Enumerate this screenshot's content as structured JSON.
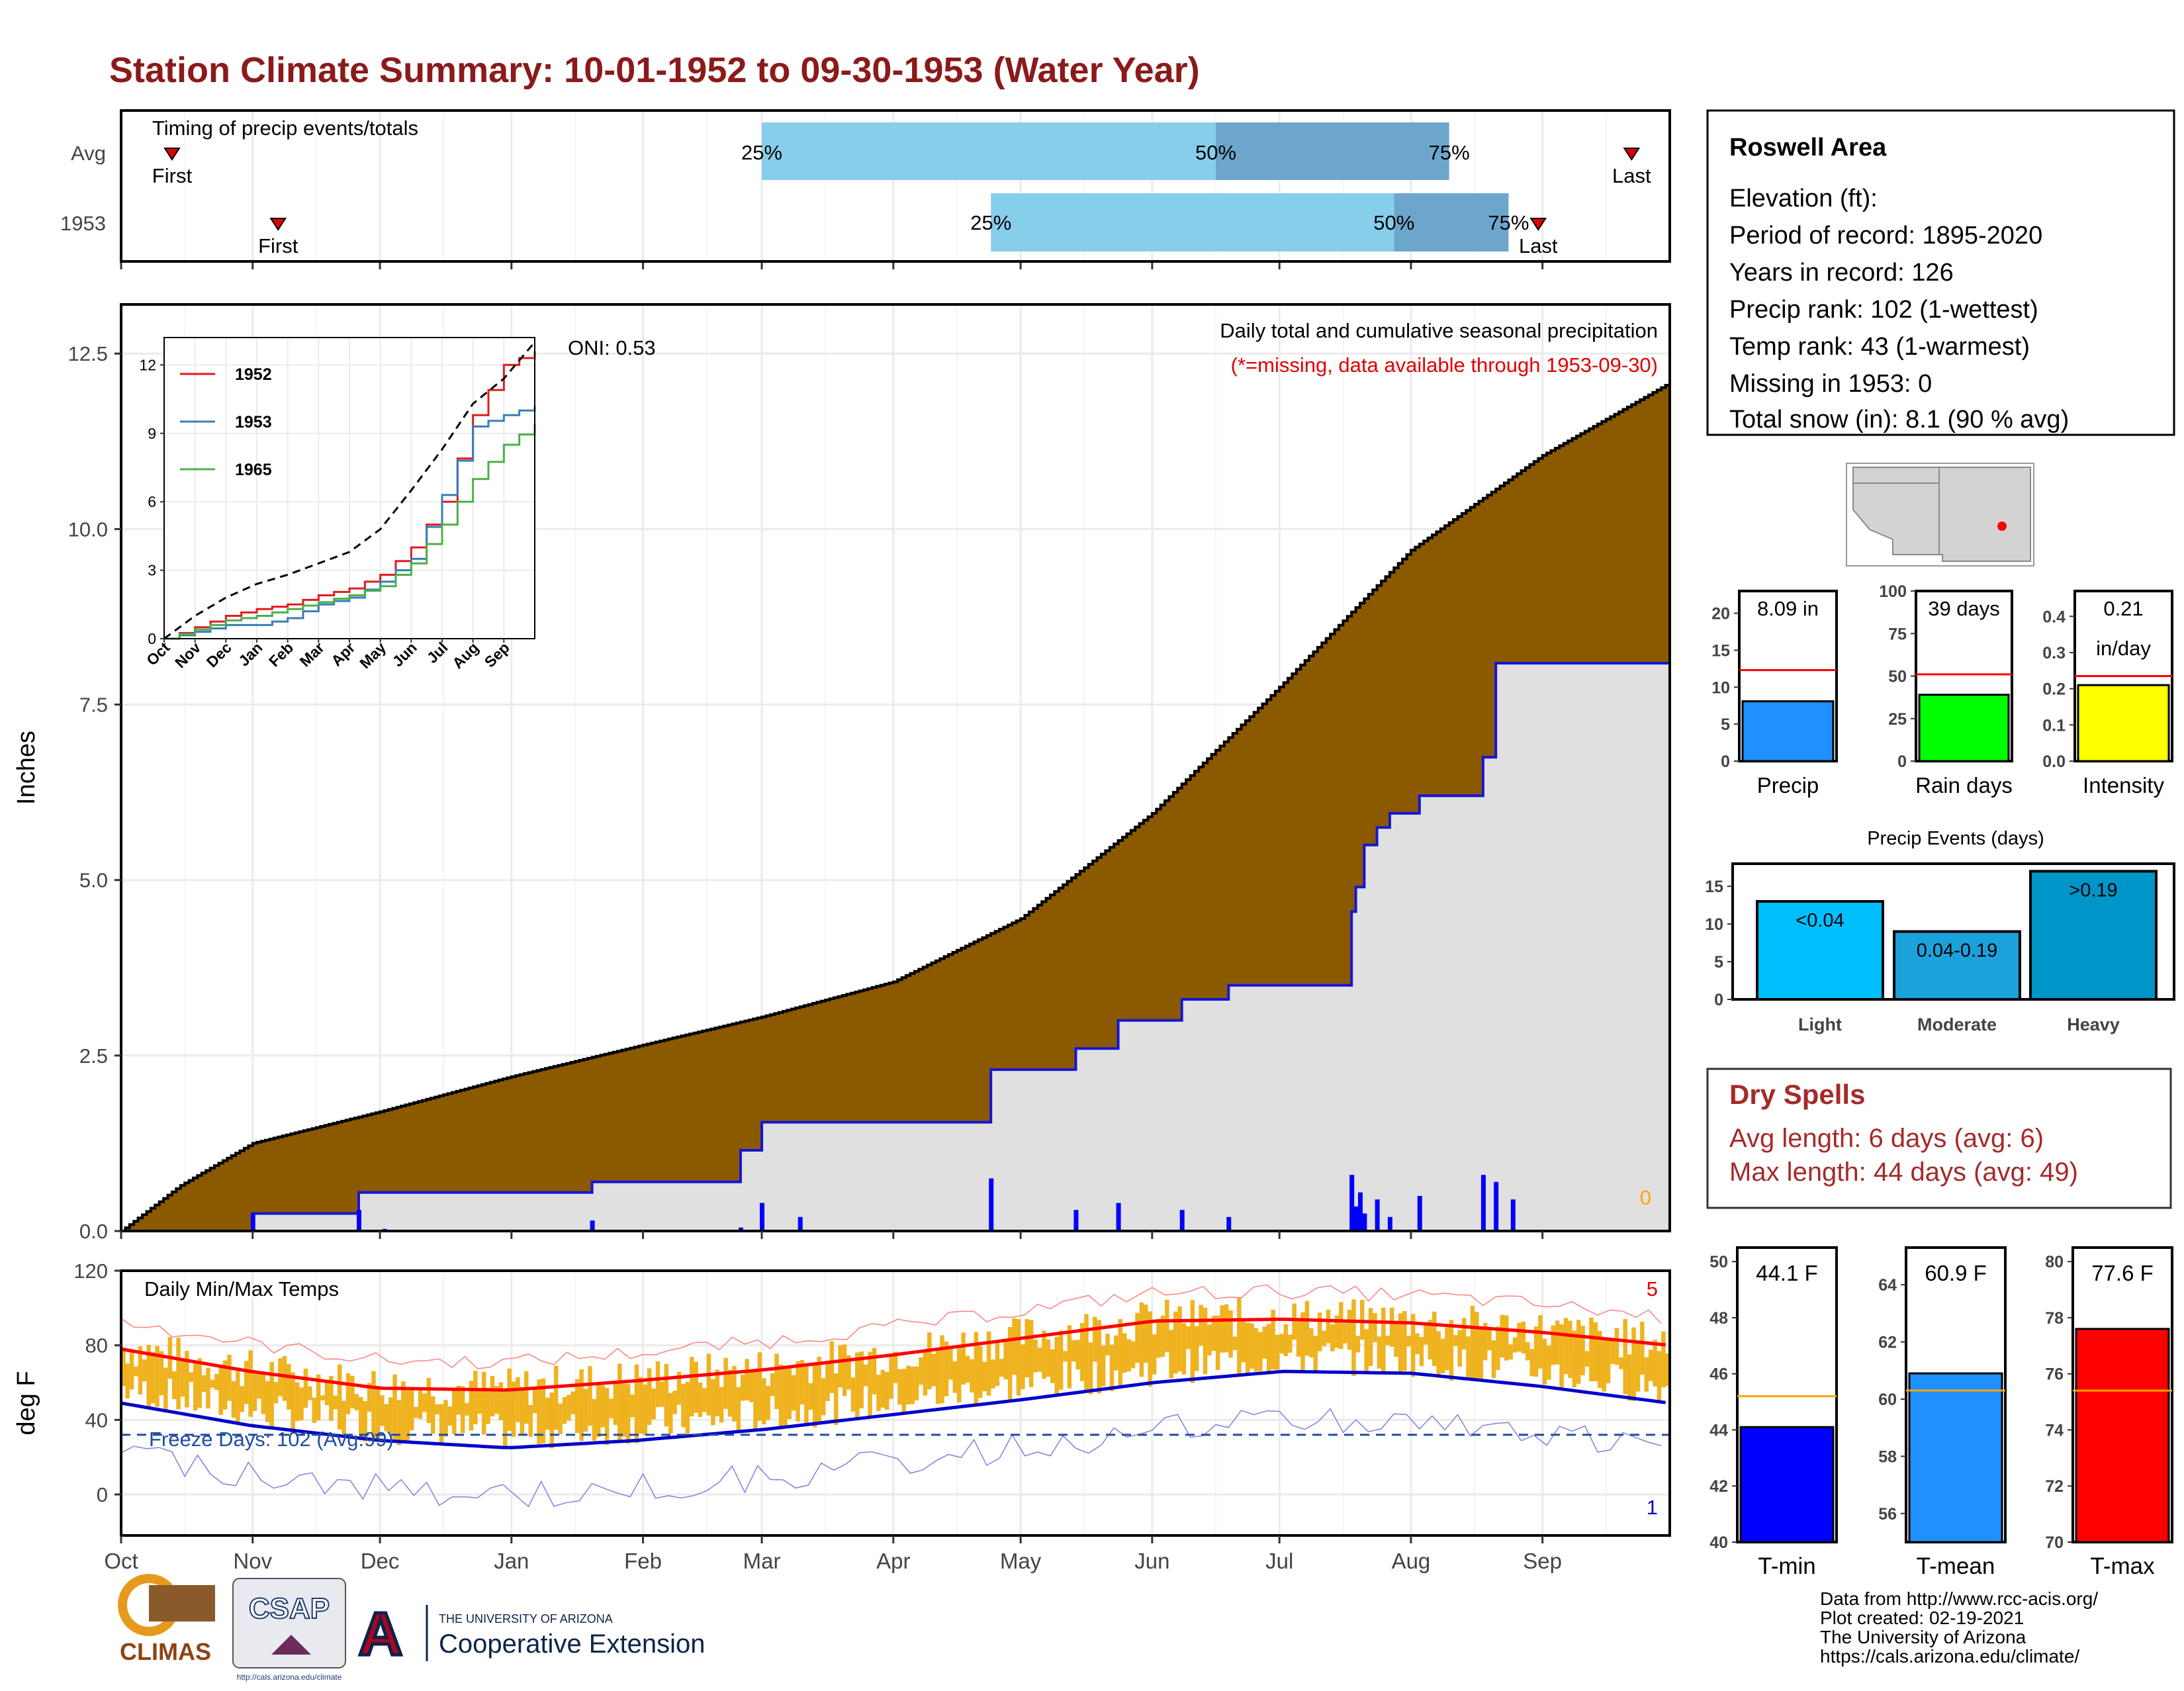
{
  "title": "Station Climate Summary: 10-01-1952 to 09-30-1953 (Water Year)",
  "colors": {
    "title": "#8B1A1A",
    "precip_fill": "#8B5A00",
    "gray_fill": "#E0E0E0",
    "current_line": "#1515D6",
    "iqr_light": "#87CEEB",
    "iqr_dark": "#6CA6CD",
    "temp_bar": "#EFB320",
    "tmax_line": "#FF0000",
    "tmin_line": "#0000CD",
    "dry_spell": "#A52A2A"
  },
  "month_labels": [
    "Oct",
    "Nov",
    "Dec",
    "Jan",
    "Feb",
    "Mar",
    "Apr",
    "May",
    "Jun",
    "Jul",
    "Aug",
    "Sep"
  ],
  "timing": {
    "title": "Timing of precip events/totals",
    "rows": [
      "Avg",
      "1953"
    ],
    "first_label": "First",
    "last_label": "Last",
    "pct_labels": [
      "25%",
      "50%",
      "75%"
    ],
    "avg": {
      "first": "1952-10-13",
      "p25": "1953-03-01",
      "p50": "1953-06-16",
      "p75": "1953-08-10",
      "last": "1953-09-22"
    },
    "y1953": {
      "first": "1952-11-07",
      "p25": "1953-04-24",
      "p50": "1953-07-28",
      "p75": "1953-08-24",
      "last": "1953-08-31"
    }
  },
  "precip": {
    "subtitle": "Daily total and cumulative seasonal precipitation",
    "missing_note": "(*=missing, data available through 1953-09-30)",
    "oni": "ONI: 0.53",
    "ylabel": "Inches",
    "yticks": [
      "0.0",
      "2.5",
      "5.0",
      "7.5",
      "10.0",
      "12.5"
    ],
    "missing_count": "0",
    "chart_data": {
      "type": "area",
      "ylim": [
        0,
        13.2
      ],
      "avg_cumulative": {
        "dates": [
          "1952-10-01",
          "1952-10-15",
          "1952-11-01",
          "1952-12-01",
          "1953-01-01",
          "1953-02-01",
          "1953-03-01",
          "1953-04-01",
          "1953-05-01",
          "1953-06-01",
          "1953-07-01",
          "1953-08-01",
          "1953-09-01",
          "1953-09-30"
        ],
        "values": [
          0.0,
          0.65,
          1.25,
          1.7,
          2.2,
          2.65,
          3.05,
          3.55,
          4.45,
          5.95,
          7.75,
          9.7,
          11.05,
          12.05
        ]
      },
      "series_1953_cumulative": {
        "dates": [
          "1952-10-01",
          "1952-11-01",
          "1952-11-26",
          "1953-01-20",
          "1953-02-24",
          "1953-03-01",
          "1953-04-24",
          "1953-05-14",
          "1953-05-24",
          "1953-06-08",
          "1953-06-19",
          "1953-07-18",
          "1953-07-19",
          "1953-07-21",
          "1953-07-24",
          "1953-07-27",
          "1953-08-03",
          "1953-08-18",
          "1953-08-21",
          "1953-09-30"
        ],
        "values": [
          0.0,
          0.25,
          0.55,
          0.7,
          1.15,
          1.55,
          2.3,
          2.6,
          3.0,
          3.3,
          3.5,
          4.55,
          4.9,
          5.5,
          5.75,
          5.95,
          6.2,
          6.75,
          8.09,
          8.09
        ]
      },
      "daily_1953": {
        "dates": [
          "1952-11-01",
          "1952-11-26",
          "1952-12-02",
          "1953-01-20",
          "1953-02-24",
          "1953-03-01",
          "1953-03-10",
          "1953-04-24",
          "1953-05-14",
          "1953-05-24",
          "1953-06-08",
          "1953-06-19",
          "1953-07-18",
          "1953-07-19",
          "1953-07-20",
          "1953-07-21",
          "1953-07-24",
          "1953-07-27",
          "1953-08-03",
          "1953-08-18",
          "1953-08-21",
          "1953-08-25"
        ],
        "values": [
          0.25,
          0.3,
          0.03,
          0.15,
          0.05,
          0.4,
          0.2,
          0.75,
          0.3,
          0.4,
          0.3,
          0.2,
          0.8,
          0.35,
          0.55,
          0.25,
          0.45,
          0.2,
          0.5,
          0.8,
          0.7,
          0.45
        ]
      },
      "inset": {
        "yticks": [
          "0",
          "3",
          "6",
          "9",
          "12"
        ],
        "xticks": [
          "Oct",
          "Nov",
          "Dec",
          "Jan",
          "Feb",
          "Mar",
          "Apr",
          "May",
          "Jun",
          "Jul",
          "Aug",
          "Sep"
        ],
        "series": [
          {
            "name": "1952",
            "color": "#E41A1C",
            "values": [
              0,
              0.5,
              1.0,
              1.3,
              1.5,
              1.9,
              2.2,
              2.8,
              4.0,
              6.0,
              9.8,
              12.0,
              14.2
            ]
          },
          {
            "name": "1953",
            "color": "#377EB8",
            "values": [
              0,
              0.3,
              0.6,
              0.6,
              0.9,
              1.5,
              1.8,
              2.5,
              3.5,
              6.3,
              9.3,
              9.8,
              10.2
            ]
          },
          {
            "name": "1965",
            "color": "#4DAF4A",
            "values": [
              0,
              0.4,
              0.8,
              1.0,
              1.3,
              1.6,
              1.9,
              2.3,
              3.3,
              5.0,
              7.0,
              8.5,
              9.4
            ]
          }
        ],
        "avg_values": [
          0,
          1.0,
          1.8,
          2.4,
          2.8,
          3.3,
          3.8,
          4.8,
          6.5,
          8.3,
          10.3,
          11.4,
          13.2
        ],
        "ylim": [
          0,
          12.5
        ]
      }
    }
  },
  "temps": {
    "title": "Daily Min/Max Temps",
    "ylabel": "deg F",
    "yticks": [
      "0",
      "40",
      "80",
      "120"
    ],
    "freeze_days": "Freeze Days: 102 (Avg:99)",
    "count_hi": "5",
    "count_lo": "1",
    "chart_data": {
      "type": "line",
      "ylim": [
        -22,
        120
      ],
      "freeze_line": 32,
      "avg_tmax_monthly": [
        78,
        66,
        57,
        56,
        61,
        67,
        75,
        84,
        93,
        94,
        92,
        87,
        80
      ],
      "avg_tmin_monthly": [
        49,
        37,
        29,
        25,
        29,
        35,
        43,
        51,
        60,
        66,
        65,
        58,
        49
      ]
    }
  },
  "info": {
    "station": "Roswell Area",
    "lines": [
      "Elevation (ft):",
      "Period of record: 1895-2020",
      "Years in record: 126",
      "Precip rank: 102 (1-wettest)",
      "Temp rank: 43 (1-warmest)",
      "Missing in 1953: 0",
      "Total snow (in): 8.1 (90 % avg)"
    ]
  },
  "mini_bars": [
    {
      "label": "Precip",
      "value_text": "8.09 in",
      "value": 8.09,
      "avg": 12.3,
      "max": 23,
      "ticks": [
        "0",
        "5",
        "10",
        "15",
        "20"
      ],
      "color": "#1E90FF"
    },
    {
      "label": "Rain days",
      "value_text": "39 days",
      "value": 39,
      "avg": 51,
      "max": 100,
      "ticks": [
        "0",
        "25",
        "50",
        "75",
        "100"
      ],
      "color": "#00FF00"
    },
    {
      "label": "Intensity",
      "value_text": "0.21",
      "value_text2": "in/day",
      "value": 0.21,
      "avg": 0.235,
      "max": 0.47,
      "ticks": [
        "0.0",
        "0.1",
        "0.2",
        "0.3",
        "0.4"
      ],
      "color": "#FFFF00"
    }
  ],
  "events": {
    "title": "Precip Events (days)",
    "chart_data": {
      "type": "bar",
      "categories": [
        "Light",
        "Moderate",
        "Heavy"
      ],
      "values": [
        13,
        9,
        17
      ],
      "bar_labels": [
        "<0.04",
        "0.04-0.19",
        ">0.19"
      ],
      "colors": [
        "#00BFFF",
        "#1CA2DA",
        "#0095C9"
      ],
      "ylim": [
        0,
        18
      ],
      "yticks": [
        "0",
        "5",
        "10",
        "15"
      ]
    }
  },
  "dry_spells": {
    "title": "Dry Spells",
    "avg_line": "Avg length: 6 days (avg: 6)",
    "max_line": "Max length: 44 days (avg: 49)"
  },
  "temp_bars": [
    {
      "label": "T-min",
      "value_text": "44.1 F",
      "value": 44.1,
      "avg": 45.2,
      "ymin": 40,
      "ymax": 50.5,
      "ticks": [
        "40",
        "42",
        "44",
        "46",
        "48",
        "50"
      ],
      "color": "#0000FF"
    },
    {
      "label": "T-mean",
      "value_text": "60.9 F",
      "value": 60.9,
      "avg": 60.3,
      "ymin": 55,
      "ymax": 65.3,
      "ticks": [
        "56",
        "58",
        "60",
        "62",
        "64"
      ],
      "color": "#1E90FF"
    },
    {
      "label": "T-max",
      "value_text": "77.6 F",
      "value": 77.6,
      "avg": 75.4,
      "ymin": 70,
      "ymax": 80.5,
      "ticks": [
        "70",
        "72",
        "74",
        "76",
        "78",
        "80"
      ],
      "color": "#FF0000"
    }
  ],
  "footer": {
    "lines": [
      "Data from http://www.rcc-acis.org/",
      "Plot created: 02-19-2021",
      "The University of Arizona",
      "https://cals.arizona.edu/climate/"
    ],
    "climas": "CLIMAS",
    "csap": "CSAP",
    "csap_url": "http://cals.arizona.edu/climate",
    "ua_small": "THE UNIVERSITY OF ARIZONA",
    "ua_big": "Cooperative Extension"
  }
}
